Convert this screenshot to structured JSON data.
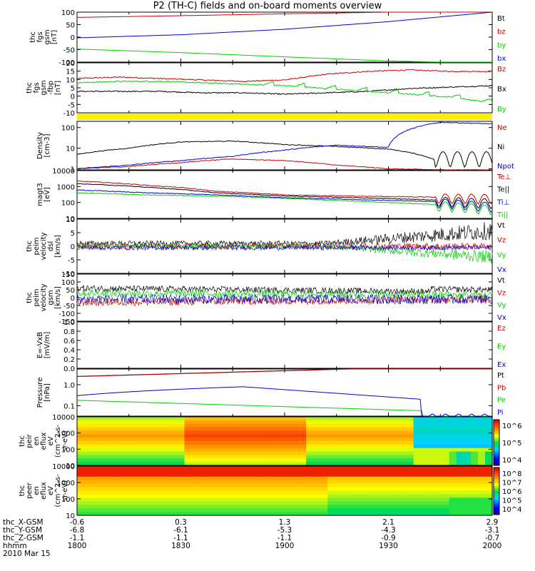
{
  "title": "P2 (TH-C) fields and on-board moments overview",
  "colors": {
    "black": "#000000",
    "red": "#cc0000",
    "green": "#00d000",
    "blue": "#0000cc",
    "yellow": "#ffee00"
  },
  "chart_data": [
    {
      "type": "line",
      "ylabel": [
        "thc",
        "fgs",
        "gsm",
        "[nT]"
      ],
      "yticks": [
        "100",
        "50",
        "0",
        "-50",
        "-100"
      ],
      "ylim": [
        -100,
        110
      ],
      "series": [
        {
          "name": "Bt",
          "color": "#000000",
          "values": []
        },
        {
          "name": "bz",
          "color": "#cc0000",
          "values": [
            88,
            95,
            103,
            110,
            115
          ]
        },
        {
          "name": "by",
          "color": "#00d000",
          "values": [
            -45,
            -60,
            -78,
            -95,
            -105
          ]
        },
        {
          "name": "bx",
          "color": "#0000cc",
          "values": [
            2,
            15,
            38,
            70,
            110
          ]
        }
      ]
    },
    {
      "type": "line",
      "ylabel": [
        "thc",
        "fgs",
        "gsm",
        "-fbp",
        "[nT]"
      ],
      "yticks": [
        "20",
        "15",
        "10",
        "5",
        "0",
        "-5",
        "-10"
      ],
      "ylim": [
        -15,
        20
      ],
      "series": [
        {
          "name": "Bz",
          "color": "#cc0000",
          "values": [
            9,
            10,
            9,
            8,
            7,
            8,
            12,
            14,
            15,
            14,
            14
          ]
        },
        {
          "name": "Bx",
          "color": "#000000",
          "values": [
            0,
            0,
            0,
            -1,
            -1,
            -2,
            -1,
            0,
            2,
            3,
            4
          ]
        },
        {
          "name": "By",
          "color": "#00d000",
          "values": [
            6,
            7,
            7,
            6,
            5,
            4,
            2,
            0,
            -2,
            -4,
            -8
          ]
        }
      ]
    },
    {
      "type": "line",
      "ylabel": [
        "Density",
        "[cm-3]"
      ],
      "yticks": [
        "100",
        "10",
        "1"
      ],
      "log": true,
      "series": [
        {
          "name": "Ne",
          "color": "#cc0000",
          "values": [
            1,
            1.3,
            2,
            3,
            2.5,
            1.5,
            1,
            0.9,
            0.9
          ]
        },
        {
          "name": "Ni",
          "color": "#000000",
          "values": [
            5,
            10,
            20,
            22,
            15,
            12,
            9,
            2,
            3
          ]
        },
        {
          "name": "Npot",
          "color": "#0000cc",
          "values": [
            1,
            1.5,
            2.5,
            4,
            8,
            14,
            11,
            180,
            150
          ]
        }
      ]
    },
    {
      "type": "line",
      "ylabel": [
        "magt3",
        "[eV]"
      ],
      "yticks": [
        "10000",
        "1000",
        "100",
        "10"
      ],
      "log": true,
      "series": [
        {
          "name": "Te⊥",
          "color": "#cc0000",
          "values": [
            2200,
            1200,
            500,
            300,
            250,
            220,
            200
          ]
        },
        {
          "name": "Te||",
          "color": "#000000",
          "values": [
            1500,
            900,
            400,
            250,
            200,
            150,
            100
          ]
        },
        {
          "name": "Ti⊥",
          "color": "#0000cc",
          "values": [
            600,
            400,
            300,
            200,
            150,
            120,
            60
          ]
        },
        {
          "name": "Ti||",
          "color": "#00d000",
          "values": [
            400,
            300,
            250,
            180,
            120,
            80,
            40
          ]
        }
      ]
    },
    {
      "type": "line",
      "ylabel": [
        "thc",
        "peim",
        "velocity",
        "dsl",
        "[km/s]"
      ],
      "yticks": [
        "10",
        "5",
        "0",
        "-5",
        "-10"
      ],
      "ylim": [
        -10,
        10
      ],
      "series": [
        {
          "name": "Vt",
          "color": "#000000"
        },
        {
          "name": "Vz",
          "color": "#cc0000"
        },
        {
          "name": "Vy",
          "color": "#00d000"
        },
        {
          "name": "Vx",
          "color": "#0000cc"
        }
      ]
    },
    {
      "type": "line",
      "ylabel": [
        "thc",
        "peim",
        "velocity",
        "gsm",
        "[km/s]"
      ],
      "yticks": [
        "150",
        "100",
        "50",
        "0",
        "-50",
        "-100",
        "-150"
      ],
      "ylim": [
        -150,
        150
      ],
      "series": [
        {
          "name": "Vt",
          "color": "#000000"
        },
        {
          "name": "Vz",
          "color": "#cc0000"
        },
        {
          "name": "Vy",
          "color": "#00d000"
        },
        {
          "name": "Vx",
          "color": "#0000cc"
        }
      ]
    },
    {
      "type": "line",
      "ylabel": [
        "E=-VxB",
        "[mV/m]"
      ],
      "yticks": [
        "1.0",
        "0.8",
        "0.6",
        "0.4",
        "0.2",
        "0.0"
      ],
      "ylim": [
        0,
        1
      ],
      "series": [
        {
          "name": "Ez",
          "color": "#cc0000"
        },
        {
          "name": "Ey",
          "color": "#00d000"
        },
        {
          "name": "Ex",
          "color": "#0000cc"
        }
      ]
    },
    {
      "type": "line",
      "ylabel": [
        "Pressure",
        "[nPa]"
      ],
      "yticks": [
        "1.0",
        "0.1"
      ],
      "log": true,
      "series": [
        {
          "name": "Pt",
          "color": "#000000"
        },
        {
          "name": "Pb",
          "color": "#cc0000"
        },
        {
          "name": "Pe",
          "color": "#00d000"
        },
        {
          "name": "Pi",
          "color": "#0000cc"
        }
      ]
    },
    {
      "type": "heatmap",
      "ylabel": [
        "thc",
        "peir",
        "en",
        "eflux",
        "eV",
        "(cm^2-s-",
        "sr-eV)"
      ],
      "yticks": [
        "10000",
        "1000",
        "100",
        "10"
      ],
      "colorbar": [
        "10^6",
        "10^5",
        "10^4"
      ]
    },
    {
      "type": "heatmap",
      "ylabel": [
        "thc",
        "peer",
        "en",
        "eflux",
        "eV",
        "(cm^2-s-",
        "sr-eV)"
      ],
      "yticks": [
        "10000",
        "1000",
        "100",
        "10"
      ],
      "colorbar": [
        "10^8",
        "10^7",
        "10^6",
        "10^5",
        "10^4"
      ]
    }
  ],
  "footer": {
    "rows": [
      {
        "label": "thc_X-GSM",
        "values": [
          "-0.6",
          "0.3",
          "1.3",
          "2.1",
          "2.9"
        ]
      },
      {
        "label": "thc_Y-GSM",
        "values": [
          "-6.8",
          "-6.1",
          "-5.3",
          "-4.3",
          "-3.1"
        ]
      },
      {
        "label": "thc_Z-GSM",
        "values": [
          "-1.1",
          "-1.1",
          "-1.1",
          "-0.9",
          "-0.7"
        ]
      },
      {
        "label": "hhmm",
        "values": [
          "1800",
          "1830",
          "1900",
          "1930",
          "2000"
        ]
      }
    ],
    "date": "2010 Mar 15"
  }
}
